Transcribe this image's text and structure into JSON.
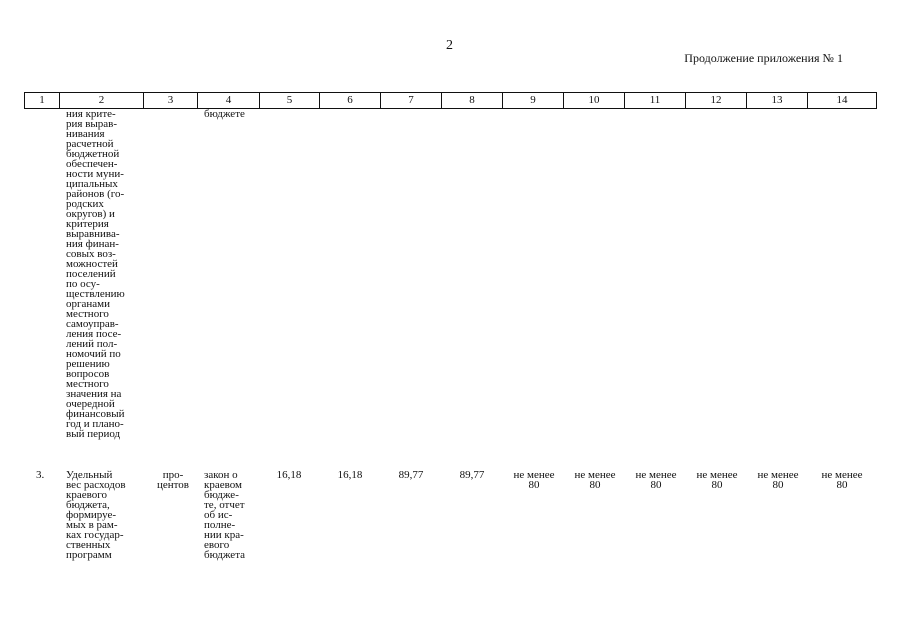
{
  "page_number": "2",
  "continuation_label": "Продолжение приложения № 1",
  "table": {
    "headers": [
      "1",
      "2",
      "3",
      "4",
      "5",
      "6",
      "7",
      "8",
      "9",
      "10",
      "11",
      "12",
      "13",
      "14"
    ],
    "continued_row": {
      "col2": "ния крите-\nрия вырав-\nнивания\nрасчетной\nбюджетной\nобеспечен-\nности муни-\nципальных\nрайонов (го-\nродских\nокругов) и\nкритерия\nвыравнива-\nния финан-\nсовых воз-\nможностей\nпоселений\nпо осу-\nществлению\nорганами\nместного\nсамоуправ-\nления посе-\nлений пол-\nномочий по\nрешению\nвопросов\nместного\nзначения на\nочередной\nфинансовый\nгод и плано-\nвый период",
      "col4": "бюджете"
    },
    "row3": {
      "num": "3.",
      "indicator": "Удельный\nвес расходов\nкраевого\nбюджета,\nформируе-\nмых в рам-\nках государ-\nственных\nпрограмм",
      "unit": "про-\nцентов",
      "source": "закон о\nкраевом\nбюдже-\nте, отчет\nоб ис-\nполне-\nнии кра-\nевого\nбюджета",
      "v5": "16,18",
      "v6": "16,18",
      "v7": "89,77",
      "v8": "89,77",
      "v9": "не менее\n80",
      "v10": "не менее\n80",
      "v11": "не менее\n80",
      "v12": "не менее\n80",
      "v13": "не менее\n80",
      "v14": "не менее\n80"
    }
  }
}
